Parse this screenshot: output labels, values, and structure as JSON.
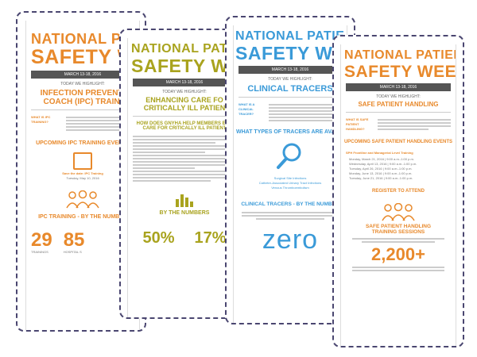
{
  "colors": {
    "orange": "#e8892b",
    "olive": "#a9a31e",
    "blue": "#3a9ad8",
    "border": "#4a4670"
  },
  "card1": {
    "title1": "NATIONAL PATIE",
    "title2": "SAFETY WE",
    "date": "MARCH 13-18, 2016",
    "highlight": "TODAY WE HIGHLIGHT:",
    "focus1": "INFECTION PREVENTI",
    "focus2": "COACH (IPC) TRAINI",
    "what_label": "WHAT IS IPC TRAINING?",
    "events": "UPCOMING IPC TRAINING EVENTS",
    "save": "Save the date: IPC Training",
    "save_sub": "Tuesday, May 10, 2016",
    "numbers": "IPC TRAINING - BY THE NUMBER",
    "num1": "29",
    "num1_label": "TRAININGS",
    "num2": "85",
    "num2_label": "HOSPITAL S"
  },
  "card2": {
    "title1": "NATIONAL PATIE",
    "title2": "SAFETY WE",
    "date": "MARCH 13-18, 2016",
    "highlight": "TODAY WE HIGHLIGHT:",
    "focus1": "ENHANCING CARE FO",
    "focus2": "CRITICALLY ILL PATIEN",
    "how": "HOW DOES GNYHA HELP MEMBERS ENH",
    "how2": "CARE FOR CRITICALLY ILL PATIENT",
    "numbers": "BY THE NUMBERS",
    "stat1": "50%",
    "stat2": "17%"
  },
  "card3": {
    "title1": "NATIONAL PATIE",
    "title2": "SAFETY WE",
    "date": "MARCH 13-18, 2016",
    "highlight": "TODAY WE HIGHLIGHT:",
    "focus": "CLINICAL TRACERS",
    "what_label": "WHAT IS A CLINICAL TRACER?",
    "types": "WHAT TYPES OF TRACERS ARE AVAILA",
    "tracers": [
      "Surgical Site Infections",
      "Catheter-Associated Urinary Tract Infections",
      "Venous Thromboembolism"
    ],
    "numbers": "CLINICAL TRACERS - BY THE NUMBER",
    "zero": "zero"
  },
  "card4": {
    "title1": "NATIONAL PATIENT",
    "title2": "SAFETY WEEK",
    "date": "MARCH 13-18, 2016",
    "highlight": "TODAY WE HIGHLIGHT:",
    "focus": "SAFE PATIENT HANDLING",
    "what_label": "WHAT IS SAFE PATIENT HANDLING?",
    "events": "UPCOMING SAFE PATIENT HANDLING EVENTS",
    "training_title": "SPH Frontline and Managerial Level Training",
    "dates": [
      "Monday, March 21, 2016 | 9:00 a.m.-1:00 p.m.",
      "Wednesday, April 13, 2016 | 9:00 a.m.-1:00 p.m.",
      "Tuesday, April 26, 2016 | 9:00 a.m.-1:00 p.m.",
      "Monday, June 13, 2016 | 9:00 a.m.-1:00 p.m.",
      "Tuesday, June 21, 2016 | 9:00 a.m.-1:00 p.m."
    ],
    "register": "REGISTER TO ATTEND",
    "sessions1": "SAFE PATIENT HANDLING",
    "sessions2": "TRAINING SESSIONS",
    "big": "2,200+"
  }
}
